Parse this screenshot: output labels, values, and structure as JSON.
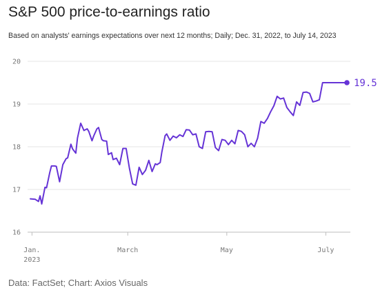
{
  "chart_data": {
    "type": "line",
    "title": "S&P 500 price-to-earnings ratio",
    "subtitle": "Based on analysts' earnings expectations over next 12 months; Daily; Dec. 31, 2022, to July 14, 2023",
    "source": "Data: FactSet; Chart: Axios Visuals",
    "xlabel": "",
    "ylabel": "",
    "ylim": [
      16,
      20
    ],
    "xlim": [
      "2022-12-31",
      "2023-07-14"
    ],
    "grid": true,
    "yticks": [
      {
        "value": 16,
        "label": "16"
      },
      {
        "value": 17,
        "label": "17"
      },
      {
        "value": 18,
        "label": "18"
      },
      {
        "value": 19,
        "label": "19"
      },
      {
        "value": 20,
        "label": "20"
      }
    ],
    "xticks": [
      {
        "date": "2023-01-01",
        "label": "Jan.",
        "label2": "2023"
      },
      {
        "date": "2023-03-01",
        "label": "March",
        "label2": ""
      },
      {
        "date": "2023-05-01",
        "label": "May",
        "label2": ""
      },
      {
        "date": "2023-07-01",
        "label": "July",
        "label2": ""
      }
    ],
    "end_label": "19.5",
    "line_color": "#6533d6",
    "series": [
      {
        "x": [
          "2022-12-31",
          "2023-01-03",
          "2023-01-05",
          "2023-01-06",
          "2023-01-07",
          "2023-01-09",
          "2023-01-10",
          "2023-01-12",
          "2023-01-13",
          "2023-01-15",
          "2023-01-16",
          "2023-01-18",
          "2023-01-20",
          "2023-01-22",
          "2023-01-23",
          "2023-01-25",
          "2023-01-26",
          "2023-01-28",
          "2023-01-29",
          "2023-01-31",
          "2023-02-02",
          "2023-02-04",
          "2023-02-05",
          "2023-02-07",
          "2023-02-08",
          "2023-02-10",
          "2023-02-11",
          "2023-02-13",
          "2023-02-14",
          "2023-02-16",
          "2023-02-17",
          "2023-02-19",
          "2023-02-20",
          "2023-02-22",
          "2023-02-24",
          "2023-02-26",
          "2023-02-28",
          "2023-03-02",
          "2023-03-04",
          "2023-03-06",
          "2023-03-08",
          "2023-03-10",
          "2023-03-12",
          "2023-03-14",
          "2023-03-16",
          "2023-03-18",
          "2023-03-19",
          "2023-03-21",
          "2023-03-22",
          "2023-03-24",
          "2023-03-25",
          "2023-03-27",
          "2023-03-29",
          "2023-03-31",
          "2023-04-02",
          "2023-04-04",
          "2023-04-06",
          "2023-04-08",
          "2023-04-10",
          "2023-04-12",
          "2023-04-14",
          "2023-04-16",
          "2023-04-18",
          "2023-04-20",
          "2023-04-22",
          "2023-04-24",
          "2023-04-26",
          "2023-04-28",
          "2023-04-30",
          "2023-05-02",
          "2023-05-04",
          "2023-05-06",
          "2023-05-08",
          "2023-05-10",
          "2023-05-12",
          "2023-05-14",
          "2023-05-16",
          "2023-05-18",
          "2023-05-20",
          "2023-05-22",
          "2023-05-24",
          "2023-05-26",
          "2023-05-28",
          "2023-05-30",
          "2023-06-01",
          "2023-06-03",
          "2023-06-05",
          "2023-06-07",
          "2023-06-09",
          "2023-06-11",
          "2023-06-13",
          "2023-06-15",
          "2023-06-17",
          "2023-06-19",
          "2023-06-21",
          "2023-06-23",
          "2023-06-25",
          "2023-06-27",
          "2023-06-29",
          "2023-07-01",
          "2023-07-03",
          "2023-07-05",
          "2023-07-07",
          "2023-07-09",
          "2023-07-11",
          "2023-07-14"
        ],
        "values": [
          16.78,
          16.77,
          16.72,
          16.85,
          16.66,
          17.05,
          17.04,
          17.4,
          17.55,
          17.55,
          17.54,
          17.18,
          17.58,
          17.72,
          17.74,
          18.06,
          17.95,
          17.85,
          18.2,
          18.55,
          18.38,
          18.42,
          18.36,
          18.14,
          18.25,
          18.42,
          18.45,
          18.17,
          18.14,
          18.13,
          17.82,
          17.86,
          17.7,
          17.73,
          17.58,
          17.96,
          17.96,
          17.5,
          17.13,
          17.1,
          17.52,
          17.35,
          17.45,
          17.68,
          17.42,
          17.6,
          17.58,
          17.63,
          17.88,
          18.26,
          18.3,
          18.15,
          18.25,
          18.21,
          18.28,
          18.24,
          18.4,
          18.39,
          18.28,
          18.3,
          18.0,
          17.96,
          18.35,
          18.36,
          18.35,
          17.98,
          17.91,
          18.17,
          18.15,
          18.05,
          18.15,
          18.07,
          18.38,
          18.36,
          18.28,
          18.0,
          18.08,
          18.0,
          18.2,
          18.59,
          18.55,
          18.66,
          18.82,
          18.96,
          19.18,
          19.12,
          19.14,
          18.92,
          18.82,
          18.73,
          19.05,
          18.97,
          19.27,
          19.28,
          19.25,
          19.05,
          19.07,
          19.1,
          19.5,
          19.5,
          19.5,
          19.5,
          19.5,
          19.5,
          19.5,
          19.5
        ]
      }
    ]
  }
}
